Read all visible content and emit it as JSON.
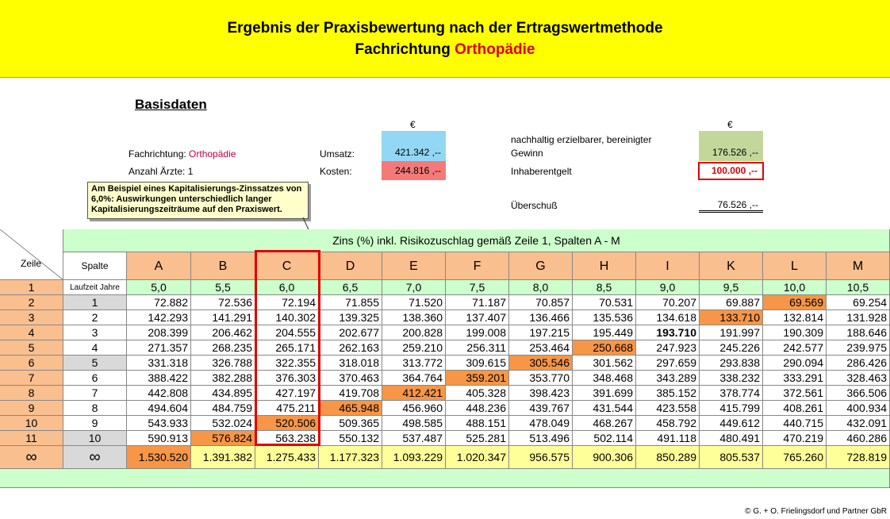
{
  "title": {
    "line1": "Ergebnis der Praxisbewertung nach der Ertragswertmethode",
    "line2_prefix": "Fachrichtung ",
    "line2_highlight": "Orthopädie"
  },
  "basisdaten": {
    "heading": "Basisdaten",
    "currency_left": "€",
    "currency_right": "€",
    "fachrichtung_label": "Fachrichtung:",
    "fachrichtung_value": "Orthopädie",
    "aerzte_label": "Anzahl Ärzte:",
    "aerzte_value": "1",
    "umsatz_label": "Umsatz:",
    "umsatz_value": "421.342 ,--",
    "kosten_label": "Kosten:",
    "kosten_value": "244.816 ,--",
    "gewinn_label_1": "nachhaltig erzielbarer, bereinigter",
    "gewinn_label_2": "Gewinn",
    "gewinn_value": "176.526 ,--",
    "inhaber_label": "Inhaberentgelt",
    "inhaber_value": "100.000 ,--",
    "ueberschuss_label": "Überschuß",
    "ueberschuss_value": "76.526 ,--",
    "callout": "Am Beispiel eines Kapitalisierungs-Zinssatzes von 6,0%: Auswirkungen unterschiedlich langer Kapitalisierungszeiträume auf den Praxiswert."
  },
  "table": {
    "zins_header": "Zins (%) inkl. Risikozuschlag  gemäß Zeile 1, Spalten A - M",
    "zeile_label": "Zeile",
    "spalte_label": "Spalte",
    "laufzeit_label": "Laufzeit Jahre",
    "columns": [
      "A",
      "B",
      "C",
      "D",
      "E",
      "F",
      "G",
      "H",
      "I",
      "K",
      "L",
      "M"
    ],
    "rates": [
      "5,0",
      "5,5",
      "6,0",
      "6,5",
      "7,0",
      "7,5",
      "8,0",
      "8,5",
      "9,0",
      "9,5",
      "10,0",
      "10,5"
    ],
    "row1_num": "1",
    "rows": [
      {
        "zeile": "2",
        "jahre": "1",
        "values": [
          "72.882",
          "72.536",
          "72.194",
          "71.855",
          "71.520",
          "71.187",
          "70.857",
          "70.531",
          "70.207",
          "69.887",
          "69.569",
          "69.254"
        ]
      },
      {
        "zeile": "3",
        "jahre": "2",
        "values": [
          "142.293",
          "141.291",
          "140.302",
          "139.325",
          "138.360",
          "137.407",
          "136.466",
          "135.536",
          "134.618",
          "133.710",
          "132.814",
          "131.928"
        ]
      },
      {
        "zeile": "4",
        "jahre": "3",
        "values": [
          "208.399",
          "206.462",
          "204.555",
          "202.677",
          "200.828",
          "199.008",
          "197.215",
          "195.449",
          "193.710",
          "191.997",
          "190.309",
          "188.646"
        ]
      },
      {
        "zeile": "5",
        "jahre": "4",
        "values": [
          "271.357",
          "268.235",
          "265.171",
          "262.163",
          "259.210",
          "256.311",
          "253.464",
          "250.668",
          "247.923",
          "245.226",
          "242.577",
          "239.975"
        ]
      },
      {
        "zeile": "6",
        "jahre": "5",
        "values": [
          "331.318",
          "326.788",
          "322.355",
          "318.018",
          "313.772",
          "309.615",
          "305.546",
          "301.562",
          "297.659",
          "293.838",
          "290.094",
          "286.426"
        ]
      },
      {
        "zeile": "7",
        "jahre": "6",
        "values": [
          "388.422",
          "382.288",
          "376.303",
          "370.463",
          "364.764",
          "359.201",
          "353.770",
          "348.468",
          "343.289",
          "338.232",
          "333.291",
          "328.463"
        ]
      },
      {
        "zeile": "8",
        "jahre": "7",
        "values": [
          "442.808",
          "434.895",
          "427.197",
          "419.708",
          "412.421",
          "405.328",
          "398.423",
          "391.699",
          "385.152",
          "378.774",
          "372.561",
          "366.506"
        ]
      },
      {
        "zeile": "9",
        "jahre": "8",
        "values": [
          "494.604",
          "484.759",
          "475.211",
          "465.948",
          "456.960",
          "448.236",
          "439.767",
          "431.544",
          "423.558",
          "415.799",
          "408.261",
          "400.934"
        ]
      },
      {
        "zeile": "10",
        "jahre": "9",
        "values": [
          "543.933",
          "532.024",
          "520.506",
          "509.365",
          "498.585",
          "488.151",
          "478.049",
          "468.267",
          "458.792",
          "449.612",
          "440.715",
          "432.091"
        ]
      },
      {
        "zeile": "11",
        "jahre": "10",
        "values": [
          "590.913",
          "576.824",
          "563.238",
          "550.132",
          "537.487",
          "525.281",
          "513.496",
          "502.114",
          "491.118",
          "480.491",
          "470.219",
          "460.286"
        ]
      }
    ],
    "infinity_row": {
      "zeile": "∞",
      "jahre": "∞",
      "values": [
        "1.530.520",
        "1.391.382",
        "1.275.433",
        "1.177.323",
        "1.093.229",
        "1.020.347",
        "956.575",
        "900.306",
        "850.289",
        "805.537",
        "765.260",
        "728.819"
      ]
    },
    "highlight_color": "#f79646"
  },
  "credit": "© G. + O. Frielingsdorf und Partner GbR"
}
